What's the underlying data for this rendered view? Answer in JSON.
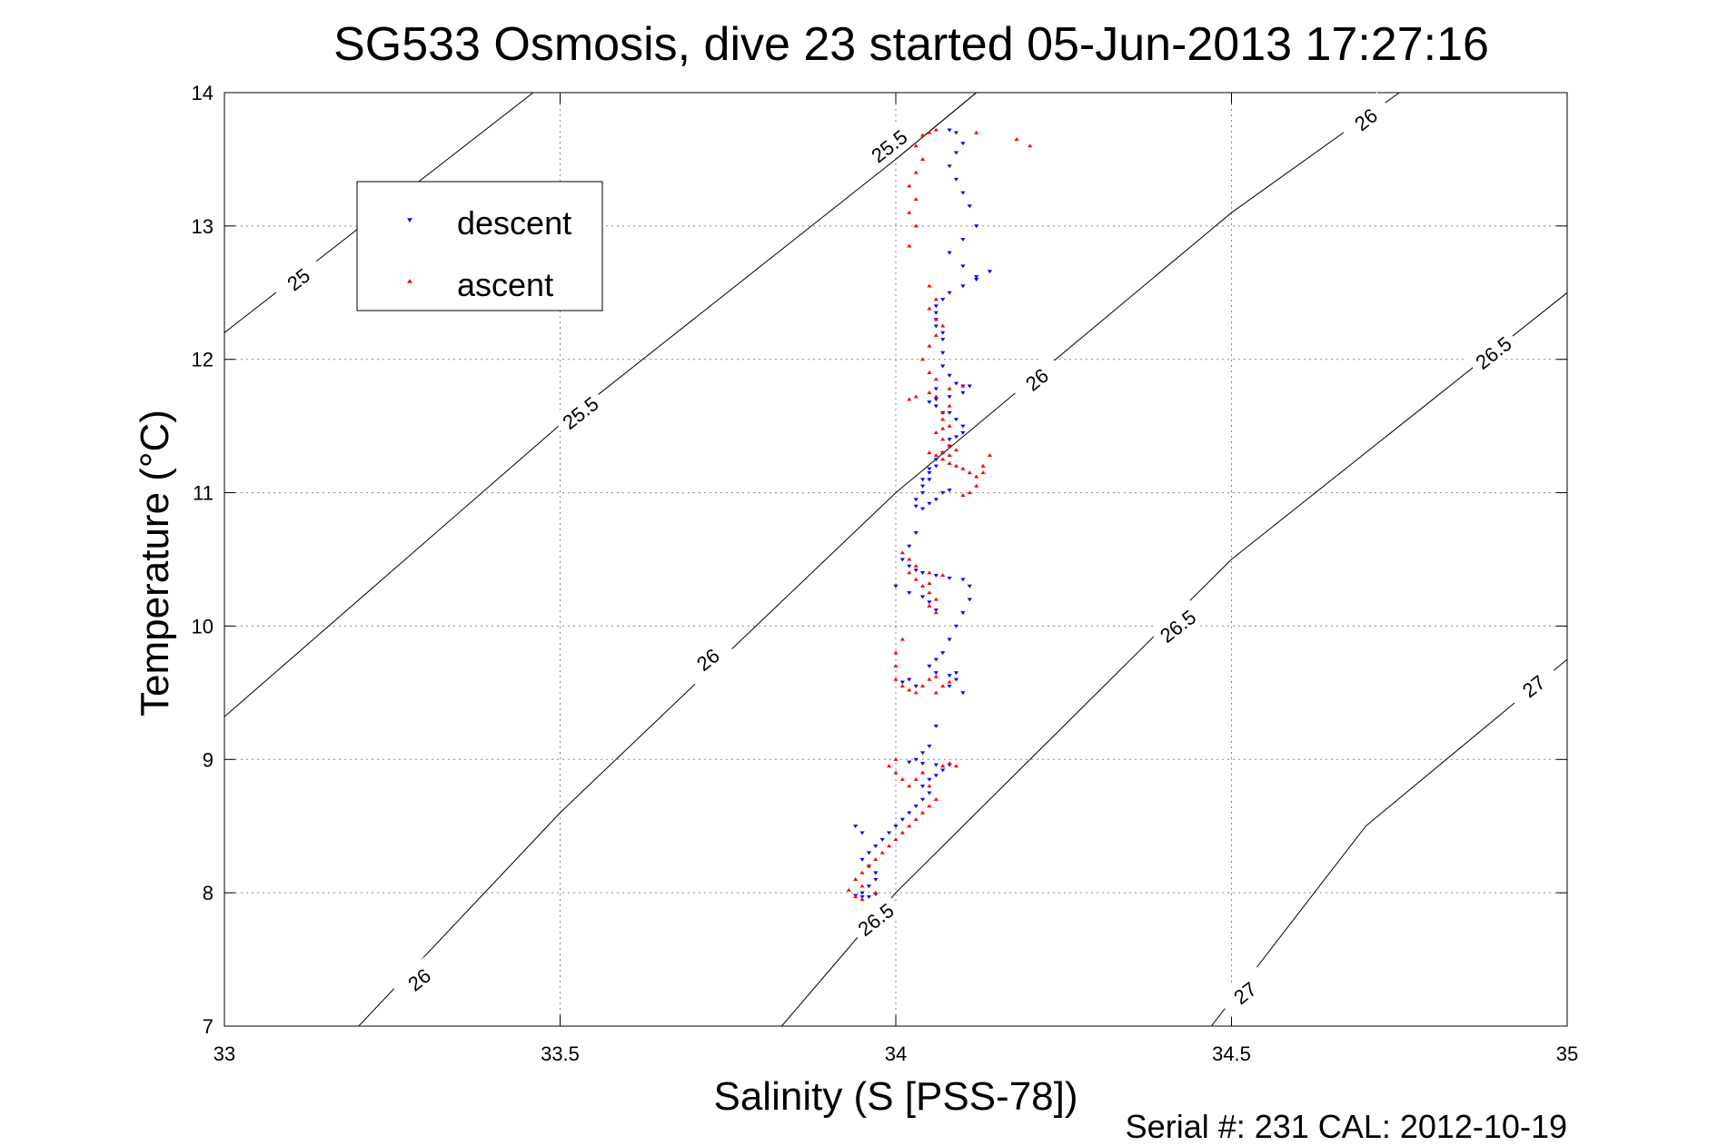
{
  "chart_data": {
    "type": "scatter",
    "title": "SG533 Osmosis, dive 23 started 05-Jun-2013 17:27:16",
    "xlabel": "Salinity (S [PSS-78])",
    "ylabel": "Temperature (°C)",
    "footer": "Serial #: 231  CAL: 2012-10-19",
    "xlim": [
      33,
      35
    ],
    "ylim": [
      7,
      14
    ],
    "x_ticks": [
      33,
      33.5,
      34,
      34.5,
      35
    ],
    "y_ticks": [
      7,
      8,
      9,
      10,
      11,
      12,
      13,
      14
    ],
    "x_tick_labels": [
      "33",
      "33.5",
      "34",
      "34.5",
      "35"
    ],
    "y_tick_labels": [
      "7",
      "8",
      "9",
      "10",
      "11",
      "12",
      "13",
      "14"
    ],
    "grid": true,
    "legend": {
      "placement": "top-left",
      "entries": [
        {
          "name": "descent",
          "color": "#0000ff",
          "marker": "triangle-down"
        },
        {
          "name": "ascent",
          "color": "#ff0000",
          "marker": "triangle-up"
        }
      ]
    },
    "series": [
      {
        "name": "descent",
        "color": "#0000ff",
        "points": [
          [
            34.08,
            13.72
          ],
          [
            34.09,
            13.7
          ],
          [
            34.1,
            13.62
          ],
          [
            34.09,
            13.55
          ],
          [
            34.08,
            13.45
          ],
          [
            34.09,
            13.35
          ],
          [
            34.1,
            13.25
          ],
          [
            34.11,
            13.15
          ],
          [
            34.12,
            13.0
          ],
          [
            34.1,
            12.9
          ],
          [
            34.08,
            12.8
          ],
          [
            34.1,
            12.7
          ],
          [
            34.12,
            12.62
          ],
          [
            34.14,
            12.66
          ],
          [
            34.12,
            12.6
          ],
          [
            34.1,
            12.55
          ],
          [
            34.08,
            12.5
          ],
          [
            34.07,
            12.45
          ],
          [
            34.06,
            12.4
          ],
          [
            34.06,
            12.35
          ],
          [
            34.06,
            12.3
          ],
          [
            34.06,
            12.25
          ],
          [
            34.07,
            12.2
          ],
          [
            34.07,
            12.15
          ],
          [
            34.07,
            12.05
          ],
          [
            34.07,
            11.95
          ],
          [
            34.08,
            11.88
          ],
          [
            34.09,
            11.82
          ],
          [
            34.1,
            11.8
          ],
          [
            34.11,
            11.8
          ],
          [
            34.1,
            11.75
          ],
          [
            34.08,
            11.72
          ],
          [
            34.06,
            11.7
          ],
          [
            34.05,
            11.68
          ],
          [
            34.06,
            11.65
          ],
          [
            34.08,
            11.6
          ],
          [
            34.09,
            11.55
          ],
          [
            34.1,
            11.5
          ],
          [
            34.1,
            11.45
          ],
          [
            34.09,
            11.42
          ],
          [
            34.08,
            11.4
          ],
          [
            34.08,
            11.35
          ],
          [
            34.07,
            11.3
          ],
          [
            34.06,
            11.25
          ],
          [
            34.06,
            11.2
          ],
          [
            34.05,
            11.15
          ],
          [
            34.05,
            11.1
          ],
          [
            34.04,
            11.05
          ],
          [
            34.04,
            11.0
          ],
          [
            34.03,
            10.95
          ],
          [
            34.03,
            10.9
          ],
          [
            34.04,
            10.88
          ],
          [
            34.05,
            10.92
          ],
          [
            34.06,
            10.95
          ],
          [
            34.07,
            11.0
          ],
          [
            34.08,
            11.02
          ],
          [
            34.03,
            10.7
          ],
          [
            34.02,
            10.6
          ],
          [
            34.01,
            10.5
          ],
          [
            34.02,
            10.45
          ],
          [
            34.03,
            10.42
          ],
          [
            34.04,
            10.4
          ],
          [
            34.06,
            10.38
          ],
          [
            34.08,
            10.36
          ],
          [
            34.1,
            10.35
          ],
          [
            34.11,
            10.3
          ],
          [
            34.11,
            10.2
          ],
          [
            34.1,
            10.1
          ],
          [
            34.09,
            10.0
          ],
          [
            34.08,
            9.9
          ],
          [
            34.07,
            9.8
          ],
          [
            34.06,
            9.75
          ],
          [
            34.05,
            9.7
          ],
          [
            34.06,
            9.65
          ],
          [
            34.08,
            9.63
          ],
          [
            34.09,
            9.6
          ],
          [
            34.08,
            9.55
          ],
          [
            34.03,
            9.55
          ],
          [
            34.02,
            9.6
          ],
          [
            34.01,
            9.58
          ],
          [
            34.02,
            10.25
          ],
          [
            34.04,
            10.22
          ],
          [
            34.05,
            10.18
          ],
          [
            34.06,
            10.12
          ],
          [
            34.06,
            9.25
          ],
          [
            34.05,
            9.1
          ],
          [
            34.04,
            9.05
          ],
          [
            34.03,
            9.0
          ],
          [
            34.02,
            8.98
          ],
          [
            34.04,
            8.97
          ],
          [
            34.06,
            8.96
          ],
          [
            34.08,
            8.96
          ],
          [
            34.07,
            8.92
          ],
          [
            34.06,
            8.88
          ],
          [
            34.05,
            8.85
          ],
          [
            34.04,
            8.8
          ],
          [
            34.05,
            8.75
          ],
          [
            34.04,
            8.7
          ],
          [
            34.03,
            8.65
          ],
          [
            34.02,
            8.6
          ],
          [
            34.01,
            8.55
          ],
          [
            34.0,
            8.5
          ],
          [
            33.99,
            8.45
          ],
          [
            33.98,
            8.4
          ],
          [
            33.97,
            8.35
          ],
          [
            33.96,
            8.3
          ],
          [
            33.95,
            8.25
          ],
          [
            33.94,
            8.5
          ],
          [
            33.95,
            8.45
          ],
          [
            33.96,
            8.2
          ],
          [
            33.97,
            8.15
          ],
          [
            33.97,
            8.1
          ],
          [
            33.96,
            8.05
          ],
          [
            33.95,
            8.0
          ],
          [
            33.94,
            7.98
          ],
          [
            33.95,
            7.97
          ],
          [
            33.96,
            7.97
          ],
          [
            33.97,
            7.99
          ],
          [
            34.0,
            10.3
          ],
          [
            34.04,
            11.1
          ],
          [
            34.05,
            11.18
          ],
          [
            34.07,
            11.6
          ],
          [
            34.06,
            11.78
          ],
          [
            34.09,
            9.65
          ],
          [
            34.1,
            9.5
          ]
        ]
      },
      {
        "name": "ascent",
        "color": "#ff0000",
        "points": [
          [
            34.06,
            13.72
          ],
          [
            34.05,
            13.7
          ],
          [
            34.04,
            13.68
          ],
          [
            34.03,
            13.6
          ],
          [
            34.04,
            13.5
          ],
          [
            34.03,
            13.4
          ],
          [
            34.02,
            13.3
          ],
          [
            34.03,
            13.2
          ],
          [
            34.02,
            13.1
          ],
          [
            34.03,
            13.0
          ],
          [
            34.02,
            12.85
          ],
          [
            34.18,
            13.65
          ],
          [
            34.2,
            13.6
          ],
          [
            34.12,
            13.7
          ],
          [
            34.05,
            12.55
          ],
          [
            34.06,
            12.45
          ],
          [
            34.05,
            12.38
          ],
          [
            34.06,
            12.3
          ],
          [
            34.07,
            12.25
          ],
          [
            34.06,
            12.18
          ],
          [
            34.05,
            12.1
          ],
          [
            34.04,
            12.0
          ],
          [
            34.05,
            11.9
          ],
          [
            34.06,
            11.85
          ],
          [
            34.05,
            11.75
          ],
          [
            34.06,
            11.72
          ],
          [
            34.08,
            11.78
          ],
          [
            34.1,
            11.8
          ],
          [
            34.08,
            11.65
          ],
          [
            34.07,
            11.6
          ],
          [
            34.07,
            11.55
          ],
          [
            34.08,
            11.5
          ],
          [
            34.07,
            11.48
          ],
          [
            34.06,
            11.45
          ],
          [
            34.07,
            11.4
          ],
          [
            34.08,
            11.35
          ],
          [
            34.09,
            11.32
          ],
          [
            34.08,
            11.28
          ],
          [
            34.07,
            11.25
          ],
          [
            34.08,
            11.22
          ],
          [
            34.09,
            11.2
          ],
          [
            34.1,
            11.18
          ],
          [
            34.11,
            11.15
          ],
          [
            34.12,
            11.12
          ],
          [
            34.13,
            11.2
          ],
          [
            34.14,
            11.28
          ],
          [
            34.13,
            11.15
          ],
          [
            34.12,
            11.05
          ],
          [
            34.11,
            11.0
          ],
          [
            34.1,
            10.98
          ],
          [
            34.07,
            11.3
          ],
          [
            34.06,
            11.28
          ],
          [
            34.05,
            11.3
          ],
          [
            34.01,
            10.55
          ],
          [
            34.02,
            10.5
          ],
          [
            34.03,
            10.45
          ],
          [
            34.02,
            10.4
          ],
          [
            34.03,
            10.35
          ],
          [
            34.04,
            10.3
          ],
          [
            34.05,
            10.25
          ],
          [
            34.06,
            10.2
          ],
          [
            34.05,
            10.15
          ],
          [
            34.06,
            10.1
          ],
          [
            34.07,
            10.38
          ],
          [
            34.05,
            10.4
          ],
          [
            34.01,
            9.9
          ],
          [
            34.0,
            9.8
          ],
          [
            34.0,
            9.7
          ],
          [
            34.0,
            9.6
          ],
          [
            34.01,
            9.55
          ],
          [
            34.02,
            9.52
          ],
          [
            34.03,
            9.5
          ],
          [
            34.04,
            9.55
          ],
          [
            34.05,
            9.6
          ],
          [
            34.06,
            9.5
          ],
          [
            34.07,
            9.55
          ],
          [
            34.08,
            9.58
          ],
          [
            34.0,
            9.0
          ],
          [
            33.99,
            8.95
          ],
          [
            34.0,
            8.9
          ],
          [
            34.01,
            8.85
          ],
          [
            34.02,
            8.8
          ],
          [
            34.03,
            8.85
          ],
          [
            34.04,
            8.9
          ],
          [
            34.05,
            8.8
          ],
          [
            34.06,
            8.7
          ],
          [
            34.05,
            8.65
          ],
          [
            34.04,
            8.6
          ],
          [
            34.03,
            8.55
          ],
          [
            34.02,
            8.5
          ],
          [
            34.01,
            8.45
          ],
          [
            34.0,
            8.4
          ],
          [
            33.99,
            8.35
          ],
          [
            33.98,
            8.3
          ],
          [
            33.97,
            8.25
          ],
          [
            33.96,
            8.2
          ],
          [
            33.95,
            8.15
          ],
          [
            33.94,
            8.1
          ],
          [
            33.95,
            8.05
          ],
          [
            33.93,
            8.02
          ],
          [
            33.94,
            7.97
          ],
          [
            33.95,
            7.95
          ],
          [
            33.97,
            8.0
          ],
          [
            34.07,
            8.95
          ],
          [
            34.08,
            8.97
          ],
          [
            34.09,
            8.95
          ],
          [
            34.06,
            9.62
          ],
          [
            34.05,
            10.32
          ],
          [
            34.03,
            11.72
          ],
          [
            34.02,
            11.7
          ]
        ]
      }
    ],
    "isopycnals": [
      {
        "label": "25",
        "points": [
          [
            33.0,
            12.2
          ],
          [
            33.46,
            14.0
          ]
        ],
        "label_at": [
          33.11,
          12.6
        ]
      },
      {
        "label": "25.5",
        "points": [
          [
            33.0,
            9.32
          ],
          [
            33.5,
            11.51
          ],
          [
            34.0,
            13.5
          ],
          [
            34.12,
            14.0
          ]
        ],
        "label_at": [
          33.53,
          11.6
        ]
      },
      {
        "label": "25.5",
        "points": [
          [
            34.0,
            13.5
          ],
          [
            34.12,
            14.0
          ]
        ],
        "label_at": [
          33.99,
          13.6
        ]
      },
      {
        "label": "26",
        "points": [
          [
            33.2,
            7.0
          ],
          [
            33.5,
            8.6
          ],
          [
            34.0,
            11.0
          ],
          [
            34.5,
            13.1
          ],
          [
            34.75,
            14.0
          ]
        ],
        "label_at": [
          33.29,
          7.35
        ]
      },
      {
        "label": "26",
        "points": [
          [
            34.0,
            11.0
          ]
        ],
        "label_at": [
          33.72,
          9.75
        ]
      },
      {
        "label": "26",
        "points": [
          [
            34.5,
            13.1
          ]
        ],
        "label_at": [
          34.21,
          11.85
        ]
      },
      {
        "label": "26",
        "points": [
          [
            34.75,
            14.0
          ]
        ],
        "label_at": [
          34.7,
          13.8
        ]
      },
      {
        "label": "26.5",
        "points": [
          [
            33.83,
            7.0
          ],
          [
            34.0,
            8.0
          ],
          [
            34.5,
            10.5
          ],
          [
            35.0,
            12.5
          ]
        ],
        "label_at": [
          33.97,
          7.8
        ]
      },
      {
        "label": "26.5",
        "points": [
          [
            34.5,
            10.5
          ]
        ],
        "label_at": [
          34.42,
          10.0
        ]
      },
      {
        "label": "26.5",
        "points": [
          [
            35.0,
            12.5
          ]
        ],
        "label_at": [
          34.89,
          12.05
        ]
      },
      {
        "label": "27",
        "points": [
          [
            34.47,
            7.0
          ],
          [
            34.7,
            8.5
          ],
          [
            35.0,
            9.75
          ]
        ],
        "label_at": [
          34.52,
          7.25
        ]
      },
      {
        "label": "27",
        "points": [
          [
            35.0,
            9.75
          ]
        ],
        "label_at": [
          34.95,
          9.55
        ]
      }
    ]
  }
}
